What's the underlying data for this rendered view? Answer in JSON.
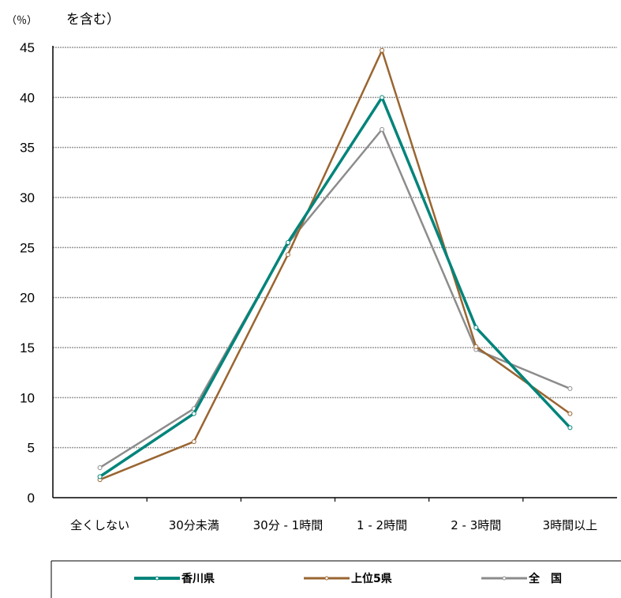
{
  "chart_data": {
    "type": "line",
    "ylabel_unit": "（％）",
    "ylabel_note": "を含む）",
    "ylim": [
      0,
      45
    ],
    "yticks": [
      "0",
      "5",
      "10",
      "15",
      "20",
      "25",
      "30",
      "35",
      "40",
      "45"
    ],
    "categories": [
      "全くしない",
      "30分未満",
      "30分 - 1時間",
      "1 - 2時間",
      "2 - 3時間",
      "3時間以上"
    ],
    "grid": true,
    "legend_position": "bottom",
    "series": [
      {
        "name": "香川県",
        "color": "#00847a",
        "marker": "x",
        "values": [
          2.1,
          8.4,
          25.5,
          40.0,
          17.0,
          7.0
        ]
      },
      {
        "name": "上位5県",
        "color": "#9a6531",
        "marker": "triangle",
        "values": [
          1.8,
          5.6,
          24.3,
          44.7,
          15.1,
          8.4
        ]
      },
      {
        "name": "全　国",
        "color": "#8c8c8c",
        "marker": "dash",
        "values": [
          3.0,
          8.9,
          25.4,
          36.8,
          14.8,
          10.9
        ]
      }
    ]
  }
}
